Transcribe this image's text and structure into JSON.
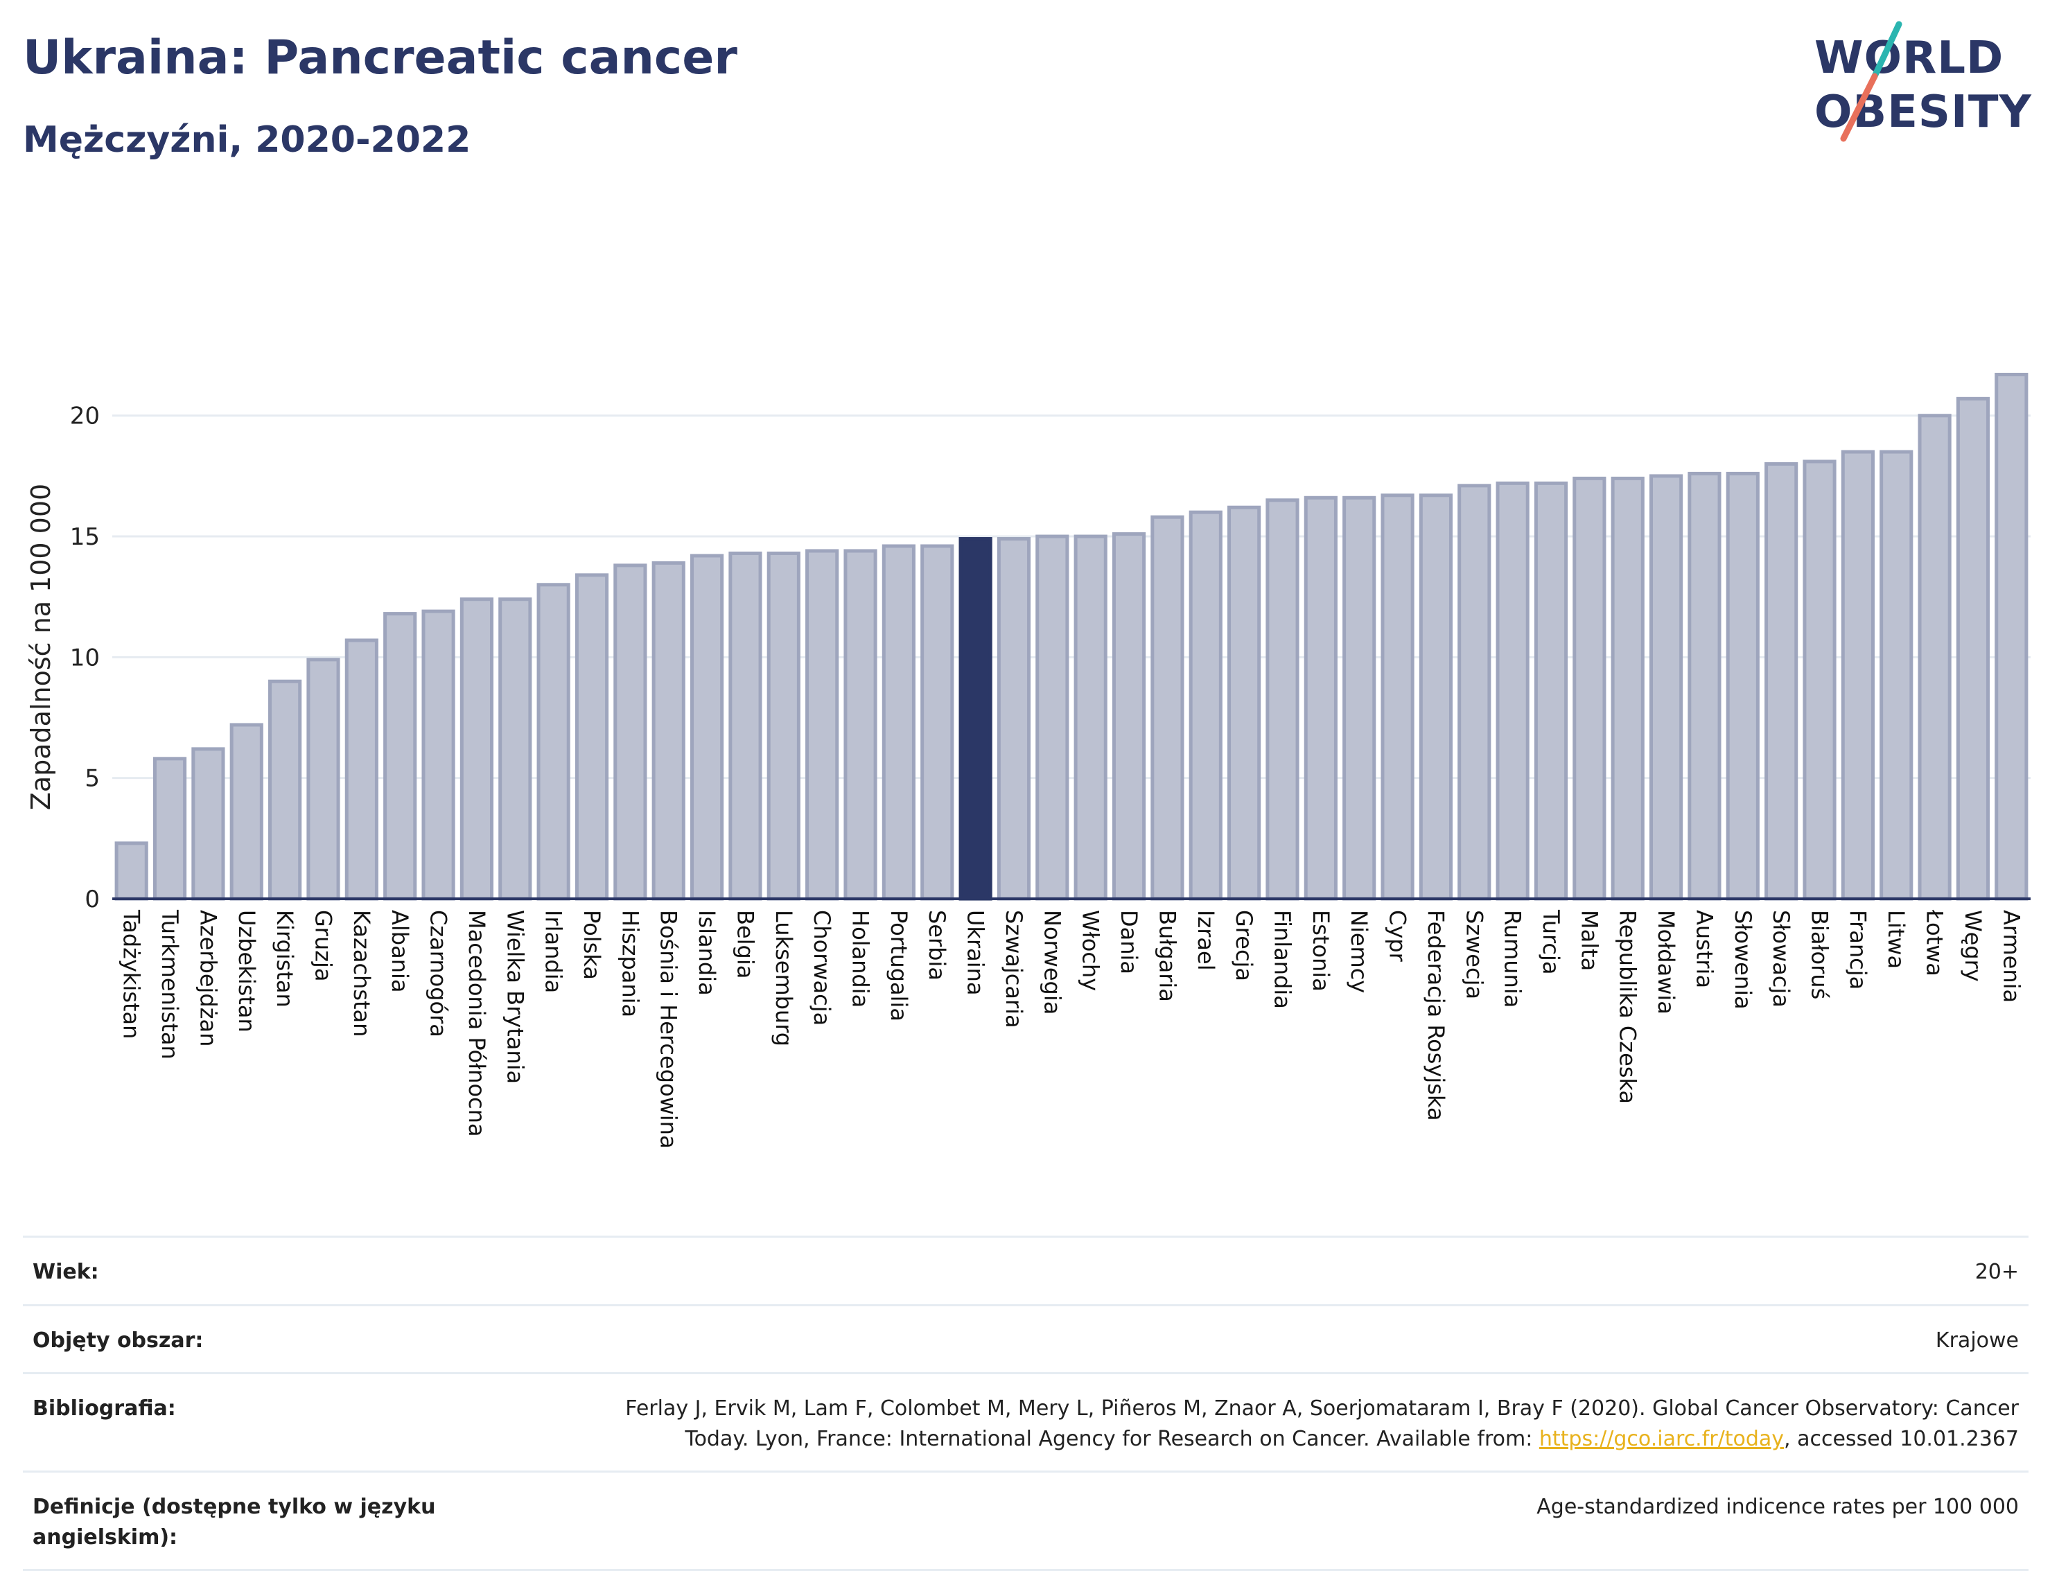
{
  "header": {
    "title": "Ukraina: Pancreatic cancer",
    "subtitle": "Mężczyźni, 2020-2022"
  },
  "logo": {
    "line1": "WORLD",
    "line2": "OBESITY",
    "accent_color": "#2bb5b0",
    "accent_color2": "#e8705b"
  },
  "colors": {
    "bar": "#bcc1d1",
    "bar_stroke": "#9ea5bd",
    "highlight": "#2b3766",
    "axis": "#2b3766",
    "grid": "#e6ebf1"
  },
  "chart_data": {
    "type": "bar",
    "title": "Ukraina: Pancreatic cancer",
    "ylabel": "Zapadalność na 100 000",
    "xlabel": "",
    "ylim": [
      0,
      22
    ],
    "yticks": [
      0,
      5,
      10,
      15,
      20
    ],
    "grid": true,
    "highlight": "Ukraina",
    "categories": [
      "Tadżykistan",
      "Turkmenistan",
      "Azerbejdżan",
      "Uzbekistan",
      "Kirgistan",
      "Gruzja",
      "Kazachstan",
      "Albania",
      "Czarnogóra",
      "Macedonia Północna",
      "Wielka Brytania",
      "Irlandia",
      "Polska",
      "Hiszpania",
      "Bośnia i Hercegowina",
      "Islandia",
      "Belgia",
      "Luksemburg",
      "Chorwacja",
      "Holandia",
      "Portugalia",
      "Serbia",
      "Ukraina",
      "Szwajcaria",
      "Norwegia",
      "Włochy",
      "Dania",
      "Bułgaria",
      "Izrael",
      "Grecja",
      "Finlandia",
      "Estonia",
      "Niemcy",
      "Cypr",
      "Federacja Rosyjska",
      "Szwecja",
      "Rumunia",
      "Turcja",
      "Malta",
      "Republika Czeska",
      "Mołdawia",
      "Austria",
      "Słowenia",
      "Słowacja",
      "Białoruś",
      "Francja",
      "Litwa",
      "Łotwa",
      "Węgry",
      "Armenia"
    ],
    "values": [
      2.3,
      5.8,
      6.2,
      7.2,
      9.0,
      9.9,
      10.7,
      11.8,
      11.9,
      12.4,
      12.4,
      13.0,
      13.4,
      13.8,
      13.9,
      14.2,
      14.3,
      14.3,
      14.4,
      14.4,
      14.6,
      14.6,
      14.9,
      14.9,
      15.0,
      15.0,
      15.1,
      15.8,
      16.0,
      16.2,
      16.5,
      16.6,
      16.6,
      16.7,
      16.7,
      17.1,
      17.2,
      17.2,
      17.4,
      17.4,
      17.5,
      17.6,
      17.6,
      18.0,
      18.1,
      18.5,
      18.5,
      20.0,
      20.7,
      21.7
    ]
  },
  "meta": [
    {
      "label": "Wiek:",
      "value": "20+"
    },
    {
      "label": "Objęty obszar:",
      "value": "Krajowe"
    },
    {
      "label": "Bibliografia:",
      "value_line1": "Ferlay J, Ervik M, Lam F, Colombet M, Mery L, Piñeros M, Znaor A, Soerjomataram I, Bray F (2020). Global Cancer Observatory: Cancer",
      "value_line2_pre": "Today. Lyon, France: International Agency for Research on Cancer. Available from: ",
      "link": "https://gco.iarc.fr/today",
      "value_line2_post": ", accessed 10.01.2367"
    },
    {
      "label": "Definicje (dostępne tylko w języku angielskim):",
      "value": "Age-standardized indicence rates per 100 000"
    }
  ]
}
